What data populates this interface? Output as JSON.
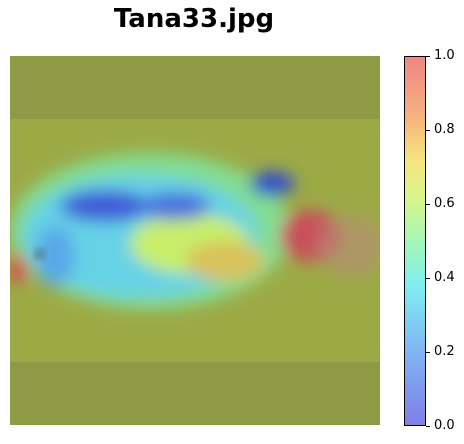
{
  "title": "Tana33.jpg",
  "chart_data": {
    "type": "heatmap",
    "title": "Tana33.jpg",
    "description": "Attention heatmap overlaid on fish image",
    "colorbar": {
      "min": 0.0,
      "max": 1.0,
      "ticks": [
        "0.0",
        "0.2",
        "0.4",
        "0.6",
        "0.8",
        "1.0"
      ],
      "tick_values": [
        0.0,
        0.2,
        0.4,
        0.6,
        0.8,
        1.0
      ]
    },
    "colors": {
      "background": "#8f9a43",
      "band": "#9aa845",
      "low": "#5a78e0",
      "high": "#d94f55"
    }
  }
}
